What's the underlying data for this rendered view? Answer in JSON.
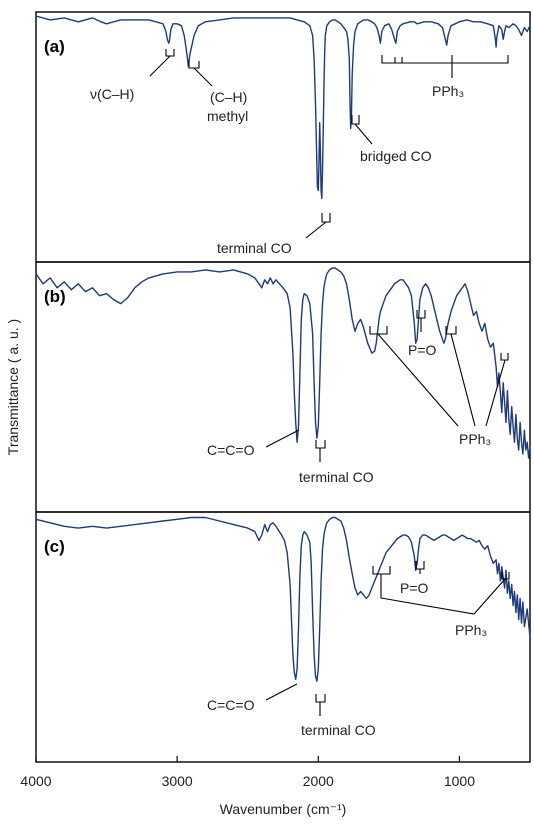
{
  "chart_data": {
    "type": "line",
    "title": "",
    "xlabel": "Wavenumber (cm⁻¹)",
    "ylabel": "Transmittance ( a. u. )",
    "xlim": [
      4000,
      500
    ],
    "x_reversed": true,
    "x_ticks": [
      4000,
      3000,
      2000,
      1000
    ],
    "x_tick_labels": [
      "4000",
      "3000",
      "2000",
      "1000"
    ],
    "y_units": "arbitrary, stacked panels, 0 = band bottom, 1 = baseline",
    "panels": [
      {
        "label": "(a)",
        "series": [
          {
            "x": [
              4000,
              3900,
              3800,
              3700,
              3600,
              3540,
              3500,
              3450,
              3400,
              3300,
              3200,
              3150,
              3100,
              3080,
              3070,
              3060,
              3055,
              3045,
              3030,
              3000,
              2970,
              2950,
              2930,
              2920,
              2910,
              2880,
              2850,
              2800,
              2700,
              2600,
              2500,
              2400,
              2300,
              2200,
              2150,
              2100,
              2060,
              2040,
              2030,
              2020,
              2012,
              2006,
              2000,
              1995,
              1990,
              1985,
              1980,
              1975,
              1970,
              1965,
              1960,
              1955,
              1950,
              1940,
              1920,
              1900,
              1880,
              1860,
              1840,
              1820,
              1800,
              1790,
              1780,
              1775,
              1770,
              1765,
              1760,
              1750,
              1740,
              1720,
              1700,
              1680,
              1650,
              1620,
              1600,
              1585,
              1570,
              1560,
              1550,
              1530,
              1500,
              1480,
              1460,
              1450,
              1440,
              1420,
              1400,
              1350,
              1320,
              1300,
              1250,
              1200,
              1150,
              1120,
              1100,
              1090,
              1080,
              1060,
              1030,
              1000,
              950,
              900,
              850,
              800,
              760,
              745,
              740,
              735,
              720,
              700,
              690,
              680,
              670,
              650,
              620,
              600,
              580,
              560,
              540,
              520,
              500
            ],
            "y": [
              1.0,
              0.98,
              0.99,
              0.97,
              0.99,
              0.97,
              0.96,
              0.97,
              0.98,
              0.98,
              0.98,
              0.97,
              0.96,
              0.92,
              0.88,
              0.86,
              0.87,
              0.93,
              0.96,
              0.96,
              0.95,
              0.9,
              0.8,
              0.74,
              0.8,
              0.9,
              0.95,
              0.97,
              0.98,
              0.99,
              0.99,
              0.99,
              0.99,
              0.99,
              0.98,
              0.97,
              0.95,
              0.9,
              0.78,
              0.55,
              0.3,
              0.12,
              0.1,
              0.25,
              0.45,
              0.3,
              0.1,
              0.06,
              0.2,
              0.4,
              0.62,
              0.8,
              0.9,
              0.95,
              0.97,
              0.98,
              0.98,
              0.97,
              0.96,
              0.94,
              0.92,
              0.88,
              0.78,
              0.55,
              0.42,
              0.5,
              0.7,
              0.85,
              0.92,
              0.96,
              0.97,
              0.98,
              0.98,
              0.97,
              0.96,
              0.94,
              0.9,
              0.86,
              0.92,
              0.95,
              0.96,
              0.93,
              0.88,
              0.86,
              0.92,
              0.95,
              0.96,
              0.97,
              0.97,
              0.96,
              0.97,
              0.97,
              0.96,
              0.94,
              0.88,
              0.85,
              0.9,
              0.95,
              0.96,
              0.97,
              0.98,
              0.97,
              0.97,
              0.96,
              0.95,
              0.88,
              0.84,
              0.89,
              0.95,
              0.93,
              0.88,
              0.92,
              0.95,
              0.94,
              0.96,
              0.95,
              0.93,
              0.9,
              0.94,
              0.92,
              0.95
            ]
          }
        ]
      },
      {
        "label": "(b)",
        "series": [
          {
            "x": [
              4000,
              3950,
              3900,
              3850,
              3800,
              3750,
              3700,
              3650,
              3600,
              3550,
              3500,
              3450,
              3400,
              3350,
              3300,
              3250,
              3200,
              3100,
              3000,
              2900,
              2800,
              2700,
              2600,
              2500,
              2450,
              2400,
              2380,
              2360,
              2340,
              2320,
              2300,
              2250,
              2220,
              2200,
              2180,
              2170,
              2160,
              2150,
              2140,
              2130,
              2120,
              2110,
              2100,
              2080,
              2060,
              2040,
              2030,
              2020,
              2010,
              2000,
              1990,
              1980,
              1970,
              1960,
              1950,
              1940,
              1920,
              1900,
              1880,
              1860,
              1840,
              1820,
              1800,
              1780,
              1760,
              1740,
              1720,
              1700,
              1680,
              1650,
              1620,
              1600,
              1590,
              1580,
              1570,
              1560,
              1540,
              1520,
              1500,
              1480,
              1460,
              1440,
              1420,
              1400,
              1380,
              1360,
              1340,
              1320,
              1310,
              1300,
              1290,
              1280,
              1260,
              1240,
              1220,
              1200,
              1180,
              1160,
              1140,
              1120,
              1110,
              1100,
              1090,
              1080,
              1060,
              1040,
              1020,
              1000,
              980,
              960,
              940,
              920,
              900,
              880,
              860,
              840,
              820,
              800,
              780,
              760,
              740,
              730,
              720,
              710,
              700,
              690,
              680,
              670,
              660,
              650,
              640,
              630,
              620,
              610,
              600,
              590,
              580,
              570,
              560,
              550,
              540,
              530,
              520,
              510,
              500
            ],
            "y": [
              0.95,
              0.9,
              0.93,
              0.88,
              0.91,
              0.87,
              0.9,
              0.86,
              0.88,
              0.84,
              0.85,
              0.82,
              0.8,
              0.83,
              0.88,
              0.91,
              0.93,
              0.95,
              0.96,
              0.96,
              0.97,
              0.96,
              0.97,
              0.95,
              0.93,
              0.88,
              0.92,
              0.9,
              0.93,
              0.9,
              0.92,
              0.88,
              0.85,
              0.78,
              0.55,
              0.35,
              0.2,
              0.1,
              0.18,
              0.45,
              0.72,
              0.82,
              0.85,
              0.84,
              0.8,
              0.65,
              0.4,
              0.2,
              0.12,
              0.18,
              0.4,
              0.65,
              0.8,
              0.88,
              0.92,
              0.95,
              0.97,
              0.98,
              0.98,
              0.97,
              0.96,
              0.94,
              0.9,
              0.82,
              0.72,
              0.66,
              0.7,
              0.72,
              0.68,
              0.6,
              0.55,
              0.56,
              0.6,
              0.66,
              0.72,
              0.76,
              0.8,
              0.84,
              0.86,
              0.88,
              0.9,
              0.91,
              0.92,
              0.92,
              0.9,
              0.88,
              0.84,
              0.7,
              0.6,
              0.62,
              0.72,
              0.82,
              0.88,
              0.9,
              0.88,
              0.84,
              0.78,
              0.72,
              0.66,
              0.62,
              0.6,
              0.62,
              0.66,
              0.7,
              0.76,
              0.8,
              0.84,
              0.86,
              0.88,
              0.9,
              0.86,
              0.8,
              0.74,
              0.76,
              0.7,
              0.66,
              0.7,
              0.62,
              0.58,
              0.6,
              0.48,
              0.38,
              0.45,
              0.35,
              0.25,
              0.4,
              0.3,
              0.2,
              0.36,
              0.22,
              0.14,
              0.28,
              0.18,
              0.1,
              0.24,
              0.12,
              0.06,
              0.2,
              0.1,
              0.04,
              0.16,
              0.06,
              0.1,
              0.02,
              0.08
            ]
          }
        ]
      },
      {
        "label": "(c)",
        "series": [
          {
            "x": [
              4000,
              3900,
              3800,
              3700,
              3600,
              3500,
              3400,
              3300,
              3200,
              3100,
              3000,
              2900,
              2800,
              2700,
              2600,
              2500,
              2450,
              2420,
              2400,
              2380,
              2360,
              2340,
              2320,
              2300,
              2260,
              2240,
              2220,
              2200,
              2190,
              2180,
              2170,
              2160,
              2150,
              2140,
              2130,
              2120,
              2110,
              2100,
              2080,
              2060,
              2050,
              2040,
              2030,
              2020,
              2010,
              2000,
              1990,
              1980,
              1970,
              1960,
              1950,
              1940,
              1920,
              1900,
              1880,
              1860,
              1840,
              1820,
              1800,
              1780,
              1760,
              1740,
              1720,
              1700,
              1680,
              1660,
              1640,
              1620,
              1600,
              1580,
              1560,
              1540,
              1520,
              1500,
              1480,
              1460,
              1440,
              1420,
              1400,
              1380,
              1360,
              1340,
              1320,
              1310,
              1300,
              1290,
              1280,
              1260,
              1240,
              1220,
              1200,
              1180,
              1160,
              1140,
              1120,
              1100,
              1080,
              1060,
              1040,
              1020,
              1000,
              980,
              960,
              940,
              920,
              900,
              880,
              860,
              840,
              820,
              800,
              780,
              760,
              740,
              730,
              720,
              710,
              700,
              690,
              680,
              670,
              660,
              650,
              640,
              630,
              620,
              610,
              600,
              590,
              580,
              570,
              560,
              550,
              540,
              520,
              500
            ],
            "y": [
              0.97,
              0.95,
              0.93,
              0.92,
              0.93,
              0.92,
              0.93,
              0.94,
              0.95,
              0.96,
              0.97,
              0.98,
              0.98,
              0.96,
              0.94,
              0.92,
              0.9,
              0.85,
              0.88,
              0.94,
              0.9,
              0.94,
              0.95,
              0.93,
              0.88,
              0.85,
              0.78,
              0.6,
              0.4,
              0.2,
              0.1,
              0.06,
              0.12,
              0.35,
              0.65,
              0.82,
              0.88,
              0.9,
              0.88,
              0.84,
              0.72,
              0.45,
              0.2,
              0.08,
              0.05,
              0.12,
              0.35,
              0.62,
              0.8,
              0.88,
              0.92,
              0.95,
              0.97,
              0.98,
              0.98,
              0.97,
              0.96,
              0.92,
              0.85,
              0.75,
              0.66,
              0.58,
              0.54,
              0.56,
              0.54,
              0.52,
              0.54,
              0.58,
              0.62,
              0.66,
              0.7,
              0.74,
              0.78,
              0.8,
              0.82,
              0.84,
              0.86,
              0.87,
              0.88,
              0.88,
              0.87,
              0.84,
              0.76,
              0.68,
              0.72,
              0.8,
              0.86,
              0.88,
              0.88,
              0.87,
              0.86,
              0.85,
              0.86,
              0.87,
              0.88,
              0.88,
              0.87,
              0.86,
              0.85,
              0.86,
              0.87,
              0.88,
              0.87,
              0.86,
              0.86,
              0.85,
              0.84,
              0.85,
              0.82,
              0.8,
              0.82,
              0.76,
              0.72,
              0.74,
              0.66,
              0.72,
              0.62,
              0.7,
              0.64,
              0.58,
              0.68,
              0.55,
              0.62,
              0.52,
              0.6,
              0.48,
              0.56,
              0.44,
              0.54,
              0.4,
              0.52,
              0.38,
              0.5,
              0.36,
              0.46,
              0.3
            ]
          }
        ]
      }
    ],
    "annotations": [
      {
        "panel": 0,
        "text": "ν(C–H)"
      },
      {
        "panel": 0,
        "text": "(C–H)"
      },
      {
        "panel": 0,
        "text": "methyl"
      },
      {
        "panel": 0,
        "text": "bridged CO"
      },
      {
        "panel": 0,
        "text": "PPh₃"
      },
      {
        "panel": 0,
        "text": "terminal CO"
      },
      {
        "panel": 1,
        "text": "P=O"
      },
      {
        "panel": 1,
        "text": "C=C=O"
      },
      {
        "panel": 1,
        "text": "terminal CO"
      },
      {
        "panel": 1,
        "text": "PPh₃"
      },
      {
        "panel": 2,
        "text": "P=O"
      },
      {
        "panel": 2,
        "text": "C=C=O"
      },
      {
        "panel": 2,
        "text": "terminal CO"
      },
      {
        "panel": 2,
        "text": "PPh₃"
      }
    ]
  }
}
